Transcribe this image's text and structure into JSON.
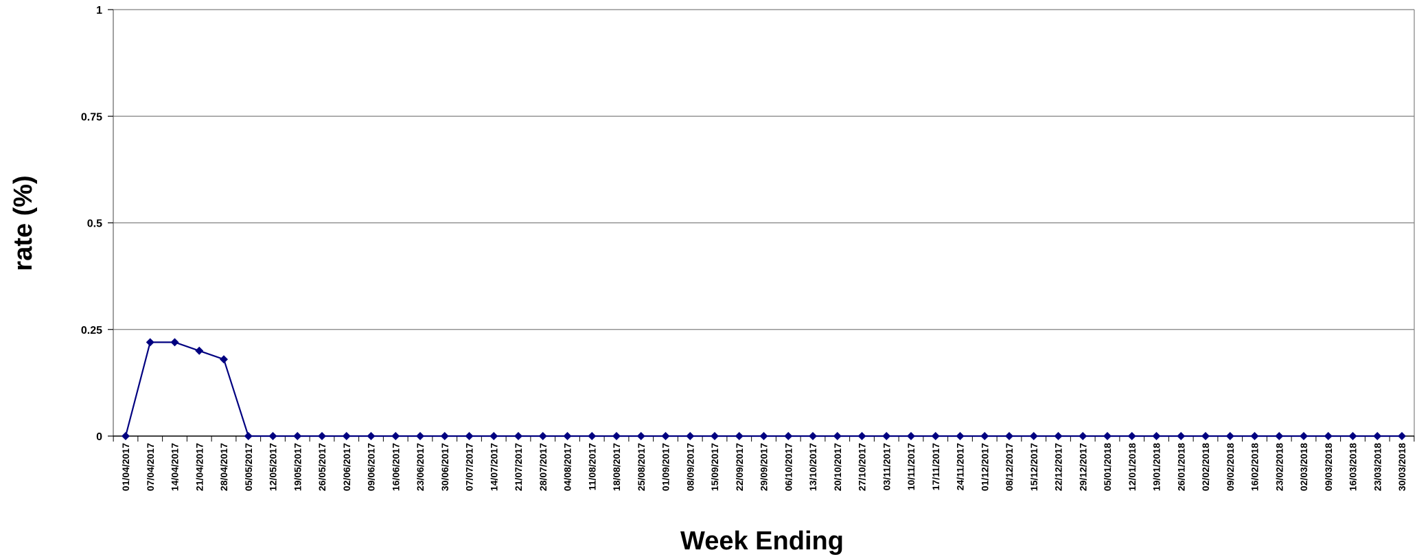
{
  "chart_data": {
    "type": "line",
    "title": "",
    "xlabel": "Week Ending",
    "ylabel": "rate (%)",
    "ylim": [
      0,
      1
    ],
    "yticks": [
      0,
      0.25,
      0.5,
      0.75,
      1
    ],
    "ytick_labels": [
      "0",
      "0.25",
      "0.5",
      "0.75",
      "1"
    ],
    "grid": "horizontal",
    "legend": "none",
    "line_color": "#000080",
    "categories": [
      "01/04/2017",
      "07/04/2017",
      "14/04/2017",
      "21/04/2017",
      "28/04/2017",
      "05/05/2017",
      "12/05/2017",
      "19/05/2017",
      "26/05/2017",
      "02/06/2017",
      "09/06/2017",
      "16/06/2017",
      "23/06/2017",
      "30/06/2017",
      "07/07/2017",
      "14/07/2017",
      "21/07/2017",
      "28/07/2017",
      "04/08/2017",
      "11/08/2017",
      "18/08/2017",
      "25/08/2017",
      "01/09/2017",
      "08/09/2017",
      "15/09/2017",
      "22/09/2017",
      "29/09/2017",
      "06/10/2017",
      "13/10/2017",
      "20/10/2017",
      "27/10/2017",
      "03/11/2017",
      "10/11/2017",
      "17/11/2017",
      "24/11/2017",
      "01/12/2017",
      "08/12/2017",
      "15/12/2017",
      "22/12/2017",
      "29/12/2017",
      "05/01/2018",
      "12/01/2018",
      "19/01/2018",
      "26/01/2018",
      "02/02/2018",
      "09/02/2018",
      "16/02/2018",
      "23/02/2018",
      "02/03/2018",
      "09/03/2018",
      "16/03/2018",
      "23/03/2018",
      "30/03/2018"
    ],
    "series": [
      {
        "values": [
          0,
          0.22,
          0.22,
          0.2,
          0.18,
          0,
          0,
          0,
          0,
          0,
          0,
          0,
          0,
          0,
          0,
          0,
          0,
          0,
          0,
          0,
          0,
          0,
          0,
          0,
          0,
          0,
          0,
          0,
          0,
          0,
          0,
          0,
          0,
          0,
          0,
          0,
          0,
          0,
          0,
          0,
          0,
          0,
          0,
          0,
          0,
          0,
          0,
          0,
          0,
          0,
          0,
          0,
          0
        ]
      }
    ]
  }
}
